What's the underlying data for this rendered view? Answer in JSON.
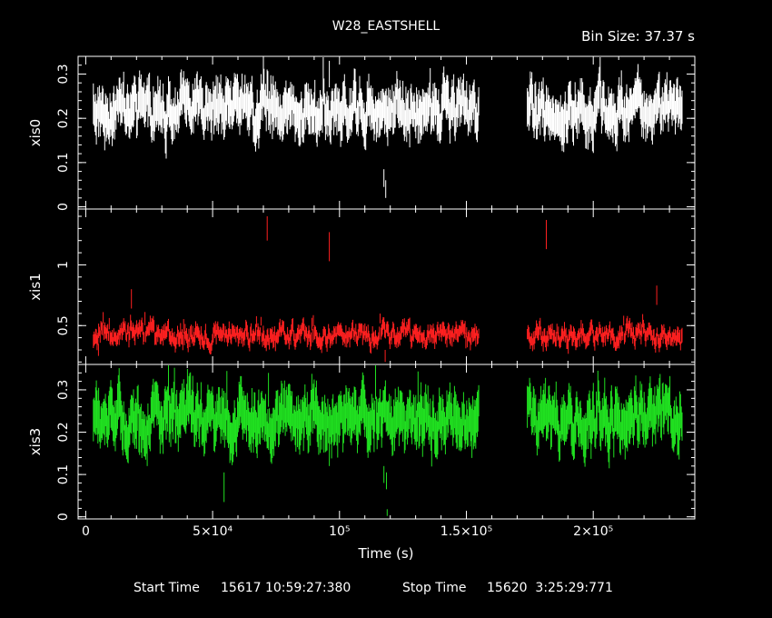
{
  "chart_data": {
    "type": "scatter",
    "title": "W28_EASTSHELL",
    "bin_size_label": "Bin Size: 37.37 s",
    "xlabel": "Time (s)",
    "xlim": [
      -3000,
      240000
    ],
    "x_ticks": [
      {
        "value": 0,
        "label": "0"
      },
      {
        "value": 50000,
        "label": "5×10⁴"
      },
      {
        "value": 100000,
        "label": "10⁵"
      },
      {
        "value": 150000,
        "label": "1.5×10⁵"
      },
      {
        "value": 200000,
        "label": "2×10⁵"
      }
    ],
    "footer": {
      "start_label": "Start Time",
      "start_value": "15617 10:59:27:380",
      "stop_label": "Stop Time",
      "stop_value": "15620  3:25:29:771"
    },
    "panels": [
      {
        "name": "xis0",
        "color": "#ffffff",
        "ylim": [
          -0.005,
          0.34
        ],
        "y_ticks": [
          {
            "value": 0,
            "label": "0"
          },
          {
            "value": 0.1,
            "label": "0.1"
          },
          {
            "value": 0.2,
            "label": "0.2"
          },
          {
            "value": 0.3,
            "label": "0.3"
          }
        ],
        "segments": [
          {
            "x_start": 3000,
            "x_end": 155000,
            "mean": 0.22,
            "noise": 0.03,
            "err": 0.04
          },
          {
            "x_start": 174000,
            "x_end": 235000,
            "mean": 0.22,
            "noise": 0.03,
            "err": 0.04
          }
        ],
        "outliers": [
          {
            "x": 117500,
            "y": 0.065,
            "err": 0.02
          },
          {
            "x": 118200,
            "y": 0.04,
            "err": 0.02
          },
          {
            "x": 96000,
            "y": 0.3,
            "err": 0.03
          },
          {
            "x": 70000,
            "y": 0.3,
            "err": 0.035
          }
        ]
      },
      {
        "name": "xis1",
        "color": "#ff2020",
        "ylim": [
          0.18,
          1.46
        ],
        "y_ticks": [
          {
            "value": 0.5,
            "label": "0.5"
          },
          {
            "value": 1,
            "label": "1"
          }
        ],
        "segments": [
          {
            "x_start": 3000,
            "x_end": 155000,
            "mean": 0.42,
            "noise": 0.06,
            "err": 0.05
          },
          {
            "x_start": 174000,
            "x_end": 235000,
            "mean": 0.42,
            "noise": 0.06,
            "err": 0.05
          }
        ],
        "outliers": [
          {
            "x": 71500,
            "y": 1.3,
            "err": 0.1
          },
          {
            "x": 96000,
            "y": 1.15,
            "err": 0.12
          },
          {
            "x": 181500,
            "y": 1.25,
            "err": 0.12
          },
          {
            "x": 18000,
            "y": 0.72,
            "err": 0.08
          },
          {
            "x": 225000,
            "y": 0.75,
            "err": 0.08
          },
          {
            "x": 5000,
            "y": 0.3,
            "err": 0.05
          },
          {
            "x": 118000,
            "y": 0.25,
            "err": 0.05
          }
        ]
      },
      {
        "name": "xis3",
        "color": "#20e020",
        "ylim": [
          -0.005,
          0.36
        ],
        "y_ticks": [
          {
            "value": 0,
            "label": "0"
          },
          {
            "value": 0.1,
            "label": "0.1"
          },
          {
            "value": 0.2,
            "label": "0.2"
          },
          {
            "value": 0.3,
            "label": "0.3"
          }
        ],
        "segments": [
          {
            "x_start": 3000,
            "x_end": 155000,
            "mean": 0.23,
            "noise": 0.035,
            "err": 0.045
          },
          {
            "x_start": 174000,
            "x_end": 235000,
            "mean": 0.23,
            "noise": 0.035,
            "err": 0.045
          }
        ],
        "outliers": [
          {
            "x": 54500,
            "y": 0.07,
            "err": 0.035
          },
          {
            "x": 117500,
            "y": 0.1,
            "err": 0.02
          },
          {
            "x": 118500,
            "y": 0.085,
            "err": 0.02
          },
          {
            "x": 118800,
            "y": 0.01,
            "err": 0.008
          },
          {
            "x": 96000,
            "y": 0.15,
            "err": 0.03
          },
          {
            "x": 72000,
            "y": 0.3,
            "err": 0.04
          }
        ]
      }
    ]
  }
}
